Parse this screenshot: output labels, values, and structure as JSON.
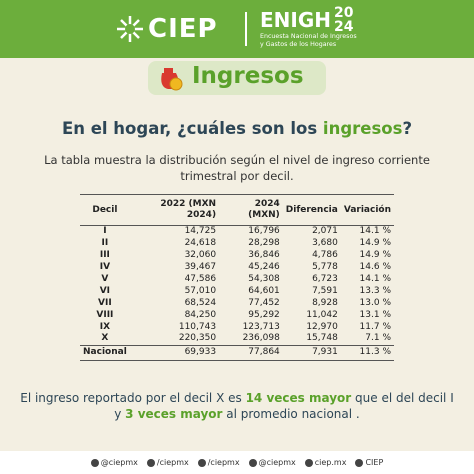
{
  "header": {
    "logo": "CIEP",
    "survey": "ENIGH",
    "year_top": "20",
    "year_bottom": "24",
    "survey_line1": "Encuesta Nacional de Ingresos",
    "survey_line2": "y Gastos de los Hogares"
  },
  "section": "Ingresos",
  "question": [
    "En el hogar, ¿cuáles son los ",
    "ingresos",
    "?"
  ],
  "subtitle": "La tabla muestra la distribución según el nivel de ingreso corriente trimestral por decil.",
  "table": {
    "headers": [
      "Decil",
      "2022 (MXN 2024)",
      "2024 (MXN)",
      "Diferencia",
      "Variación"
    ],
    "rows": [
      [
        "I",
        "14,725",
        "16,796",
        "2,071",
        "14.1 %"
      ],
      [
        "II",
        "24,618",
        "28,298",
        "3,680",
        "14.9 %"
      ],
      [
        "III",
        "32,060",
        "36,846",
        "4,786",
        "14.9 %"
      ],
      [
        "IV",
        "39,467",
        "45,246",
        "5,778",
        "14.6 %"
      ],
      [
        "V",
        "47,586",
        "54,308",
        "6,723",
        "14.1 %"
      ],
      [
        "VI",
        "57,010",
        "64,601",
        "7,591",
        "13.3 %"
      ],
      [
        "VII",
        "68,524",
        "77,452",
        "8,928",
        "13.0 %"
      ],
      [
        "VIII",
        "84,250",
        "95,292",
        "11,042",
        "13.1 %"
      ],
      [
        "IX",
        "110,743",
        "123,713",
        "12,970",
        "11.7 %"
      ],
      [
        "X",
        "220,350",
        "236,098",
        "15,748",
        "7.1 %"
      ],
      [
        "Nacional",
        "69,933",
        "77,864",
        "7,931",
        "11.3 %"
      ]
    ]
  },
  "note": [
    "El ingreso reportado por el decil X es ",
    "14 veces mayor",
    " que el del decil I y ",
    "3 veces mayor",
    " al promedio nacional ."
  ],
  "footer": [
    "@ciepmx",
    "/ciepmx",
    "/ciepmx",
    "@ciepmx",
    "ciep.mx",
    "CIEP"
  ]
}
